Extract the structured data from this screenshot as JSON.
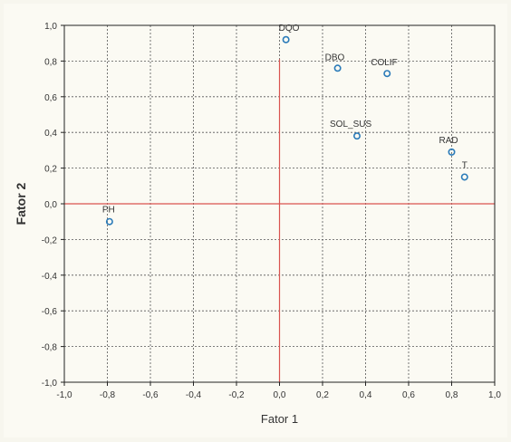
{
  "chart_data": {
    "type": "scatter",
    "xlabel": "Fator 1",
    "ylabel": "Fator 2",
    "xlim": [
      -1.0,
      1.0
    ],
    "ylim": [
      -1.0,
      1.0
    ],
    "x_ticks": [
      "-1,0",
      "-0,8",
      "-0,6",
      "-0,4",
      "-0,2",
      "0,0",
      "0,2",
      "0,4",
      "0,6",
      "0,8",
      "1,0"
    ],
    "y_ticks": [
      "1,0",
      "0,8",
      "0,6",
      "0,4",
      "0,2",
      "0,0",
      "-0,2",
      "-0,4",
      "-0,6",
      "-0,8",
      "-1,0"
    ],
    "grid": true,
    "reference_lines": {
      "x": 0.0,
      "y": 0.0,
      "color": "#d9534f"
    },
    "point_color": "#2b7bb9",
    "points": [
      {
        "label": "DQO",
        "x": 0.03,
        "y": 0.92
      },
      {
        "label": "DBO",
        "x": 0.27,
        "y": 0.76
      },
      {
        "label": "COLIF",
        "x": 0.5,
        "y": 0.73
      },
      {
        "label": "SOL_SUS",
        "x": 0.36,
        "y": 0.38
      },
      {
        "label": "RAD",
        "x": 0.8,
        "y": 0.29
      },
      {
        "label": "T",
        "x": 0.86,
        "y": 0.15
      },
      {
        "label": "PH",
        "x": -0.79,
        "y": -0.1
      }
    ]
  }
}
